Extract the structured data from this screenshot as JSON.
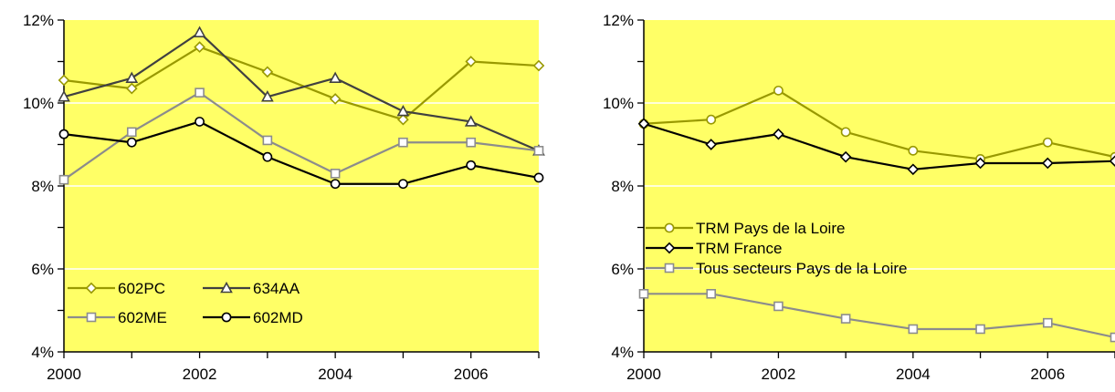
{
  "chart_data": [
    {
      "type": "line",
      "title": "",
      "xlabel": "",
      "ylabel": "",
      "x": [
        2000,
        2001,
        2002,
        2003,
        2004,
        2005,
        2006,
        2007
      ],
      "x_tick_labels": [
        "2000",
        "2002",
        "2004",
        "2006"
      ],
      "y_tick_labels": [
        "4%",
        "6%",
        "8%",
        "10%",
        "12%"
      ],
      "xlim": [
        2000,
        2007
      ],
      "ylim": [
        4,
        12
      ],
      "grid": "horizontal",
      "plot_background": "#ffff66",
      "legend_position": "bottom-left",
      "series": [
        {
          "name": "602PC",
          "marker": "diamond",
          "color": "#999900",
          "values": [
            10.55,
            10.35,
            11.35,
            10.75,
            10.1,
            9.6,
            11.0,
            10.9
          ]
        },
        {
          "name": "634AA",
          "marker": "triangle",
          "color": "#404040",
          "values": [
            10.15,
            10.6,
            11.7,
            10.15,
            10.6,
            9.8,
            9.55,
            8.85
          ]
        },
        {
          "name": "602ME",
          "marker": "square",
          "color": "#8c8c8c",
          "values": [
            8.15,
            9.3,
            10.25,
            9.1,
            8.3,
            9.05,
            9.05,
            8.85
          ]
        },
        {
          "name": "602MD",
          "marker": "circle",
          "color": "#000000",
          "values": [
            9.25,
            9.05,
            9.55,
            8.7,
            8.05,
            8.05,
            8.5,
            8.2
          ]
        }
      ]
    },
    {
      "type": "line",
      "title": "",
      "xlabel": "",
      "ylabel": "",
      "x": [
        2000,
        2001,
        2002,
        2003,
        2004,
        2005,
        2006,
        2007
      ],
      "x_tick_labels": [
        "2000",
        "2002",
        "2004",
        "2006"
      ],
      "y_tick_labels": [
        "4%",
        "6%",
        "8%",
        "10%",
        "12%"
      ],
      "xlim": [
        2000,
        2007
      ],
      "ylim": [
        4,
        12
      ],
      "grid": "horizontal",
      "plot_background": "#ffff66",
      "legend_position": "center-left",
      "series": [
        {
          "name": "TRM Pays de la Loire",
          "marker": "circle",
          "color": "#999900",
          "values": [
            9.5,
            9.6,
            10.3,
            9.3,
            8.85,
            8.65,
            9.05,
            8.7
          ]
        },
        {
          "name": "TRM France",
          "marker": "diamond",
          "color": "#000000",
          "values": [
            9.5,
            9.0,
            9.25,
            8.7,
            8.4,
            8.55,
            8.55,
            8.6
          ]
        },
        {
          "name": "Tous secteurs Pays de la Loire",
          "marker": "square",
          "color": "#8c8c8c",
          "values": [
            5.4,
            5.4,
            5.1,
            4.8,
            4.55,
            4.55,
            4.7,
            4.35
          ]
        }
      ]
    }
  ]
}
